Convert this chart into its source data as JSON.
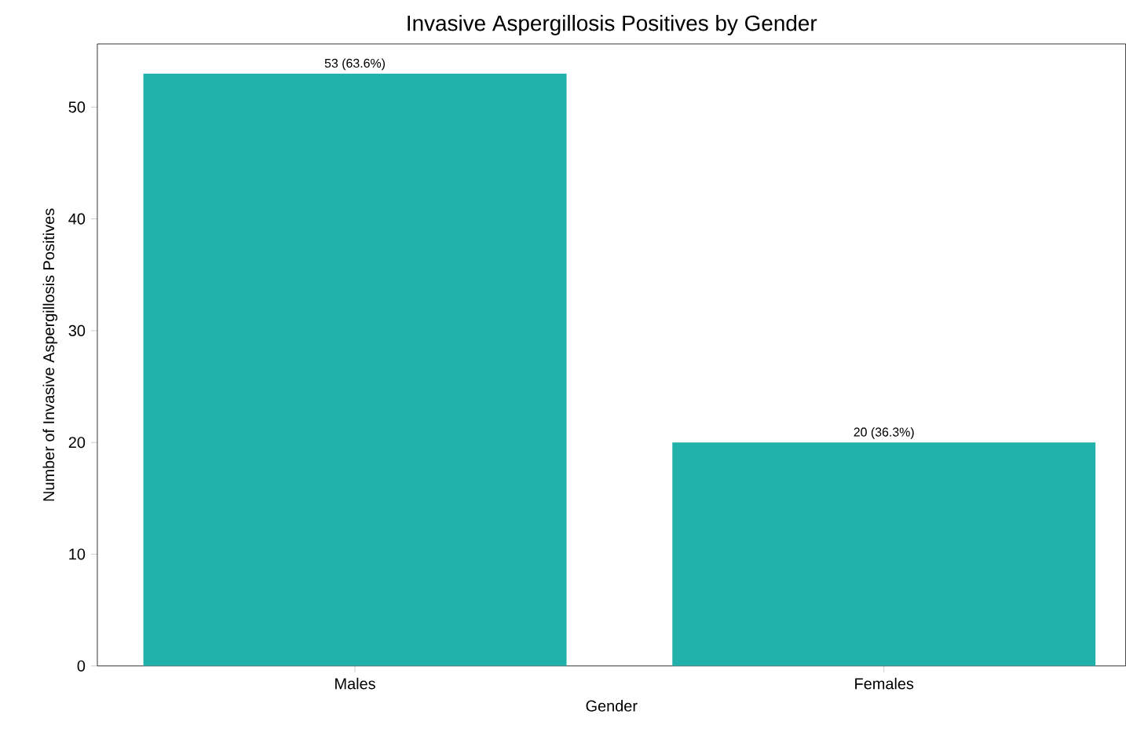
{
  "chart_data": {
    "type": "bar",
    "title": "Invasive Aspergillosis Positives by Gender",
    "xlabel": "Gender",
    "ylabel": "Number of Invasive Aspergillosis Positives",
    "categories": [
      "Males",
      "Females"
    ],
    "values": [
      53,
      20
    ],
    "value_labels": [
      "53 (63.6%)",
      "20 (36.3%)"
    ],
    "color": "#20b2aa",
    "ylim": [
      0,
      55.65
    ],
    "yticks": [
      0,
      10,
      20,
      30,
      40,
      50
    ],
    "grid": false
  }
}
